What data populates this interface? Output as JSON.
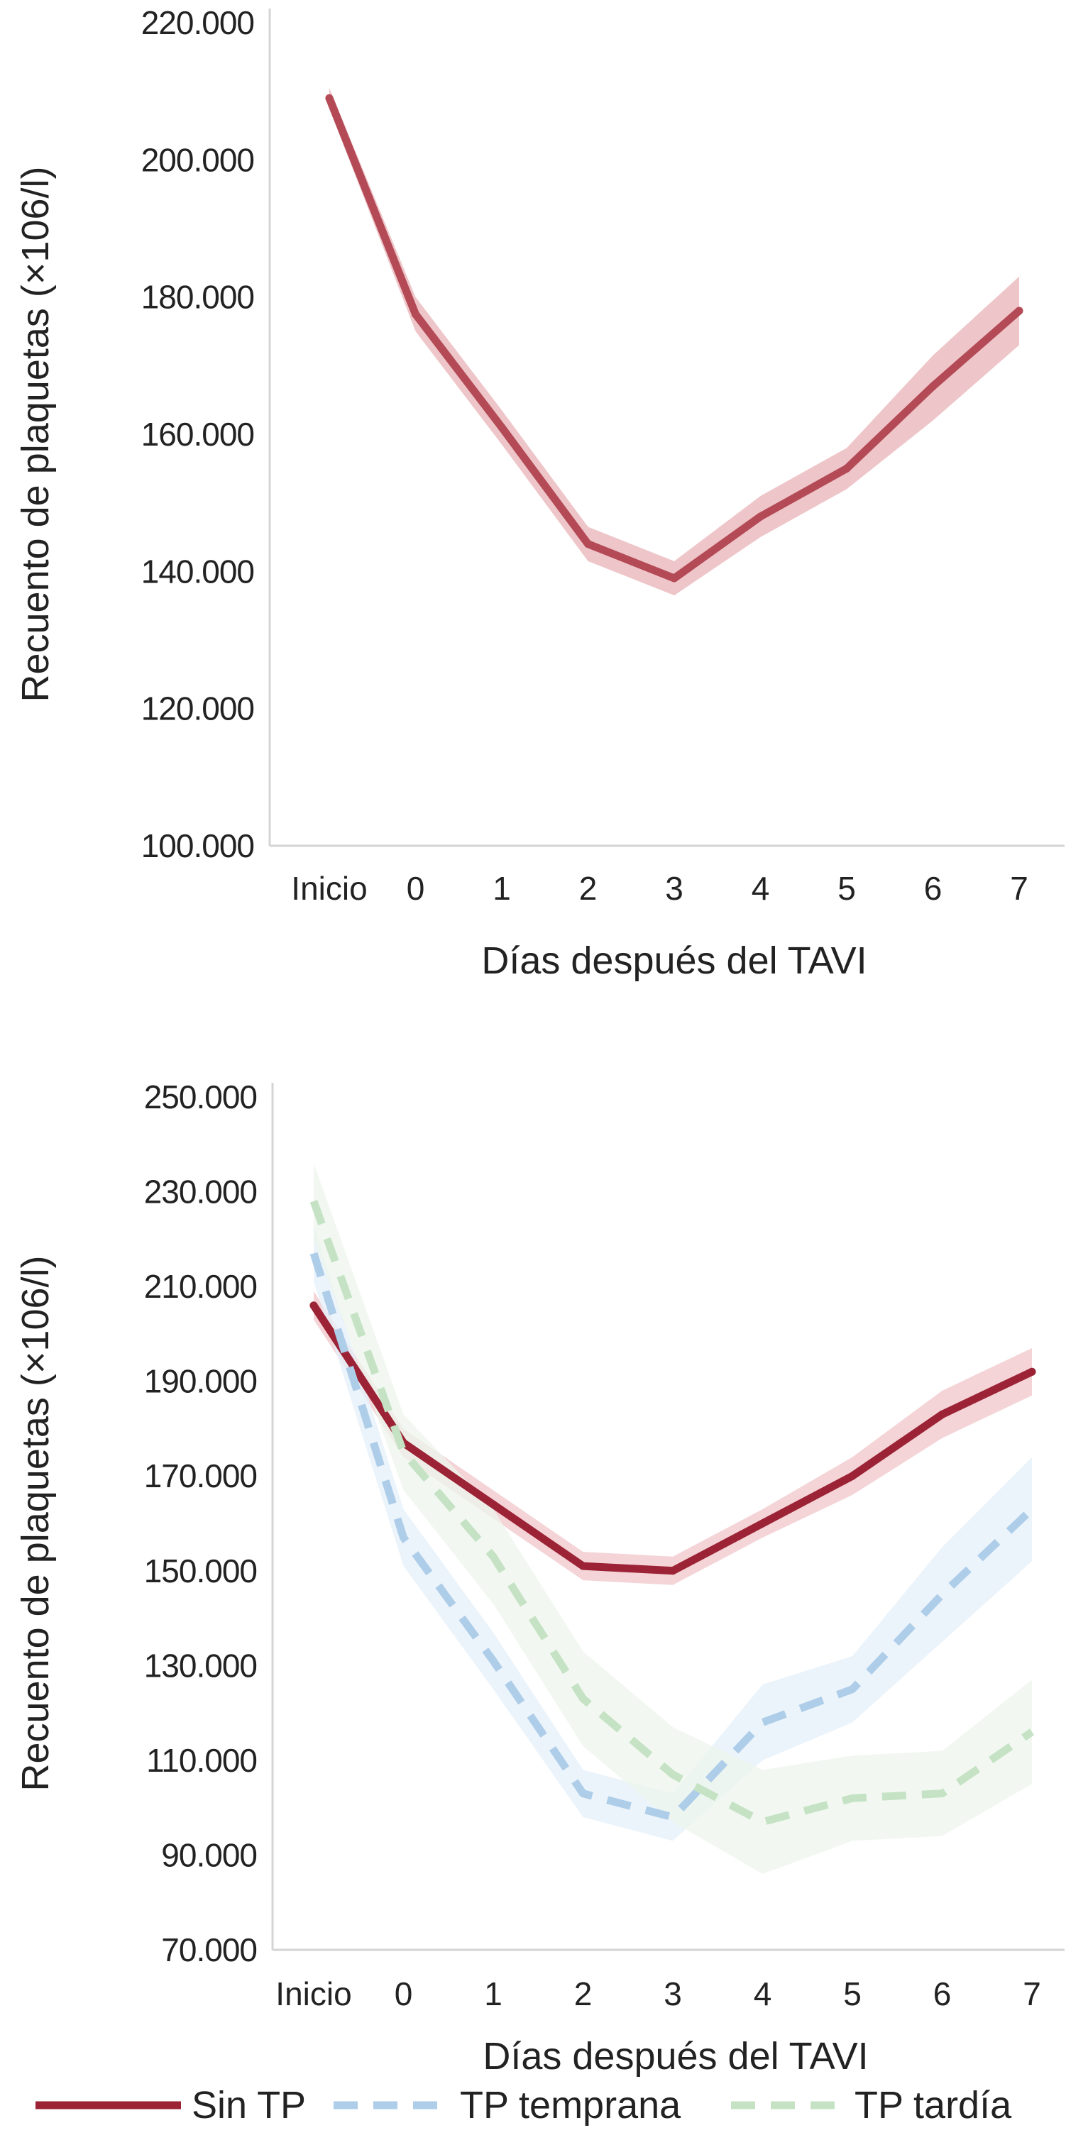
{
  "chart_data": [
    {
      "type": "line",
      "title": "",
      "xlabel": "Días después del TAVI",
      "ylabel": "Recuento de plaquetas (×106/l)",
      "categories": [
        "Inicio",
        "0",
        "1",
        "2",
        "3",
        "4",
        "5",
        "6",
        "7"
      ],
      "ylim": [
        100000,
        220000
      ],
      "yticks": [
        100000,
        120000,
        140000,
        160000,
        180000,
        200000,
        220000
      ],
      "ytick_labels": [
        "100.000",
        "120.000",
        "140.000",
        "160.000",
        "180.000",
        "200.000",
        "220.000"
      ],
      "grid": false,
      "series": [
        {
          "values": [
            209000,
            177500,
            161000,
            144000,
            139000,
            148000,
            155000,
            167000,
            178000
          ],
          "lower": [
            207500,
            175000,
            158500,
            141500,
            136500,
            145000,
            152000,
            162000,
            173000
          ],
          "upper": [
            210500,
            180000,
            163500,
            146500,
            141500,
            151000,
            158000,
            171500,
            183000
          ],
          "color": "#b34a56",
          "band_color": "#e8b3b7",
          "dashed": false
        }
      ]
    },
    {
      "type": "line",
      "title": "",
      "xlabel": "Días después del TAVI",
      "ylabel": "Recuento de plaquetas (×106/l)",
      "categories": [
        "Inicio",
        "0",
        "1",
        "2",
        "3",
        "4",
        "5",
        "6",
        "7"
      ],
      "ylim": [
        70000,
        250000
      ],
      "yticks": [
        70000,
        90000,
        110000,
        130000,
        150000,
        170000,
        190000,
        210000,
        230000,
        250000
      ],
      "ytick_labels": [
        "70.000",
        "90.000",
        "110.000",
        "130.000",
        "150.000",
        "170.000",
        "190.000",
        "210.000",
        "230.000",
        "250.000"
      ],
      "grid": false,
      "legend_position": "bottom",
      "series": [
        {
          "name": "Sin TP",
          "values": [
            206000,
            177000,
            164000,
            151000,
            150000,
            160000,
            170000,
            183000,
            192000
          ],
          "lower": [
            203000,
            174000,
            161000,
            148000,
            147000,
            157000,
            166000,
            178000,
            187000
          ],
          "upper": [
            209000,
            180000,
            167000,
            154000,
            153000,
            163000,
            174000,
            188000,
            197000
          ],
          "color": "#9b2335",
          "band_color": "#f0c6c9",
          "dashed": false
        },
        {
          "name": "TP temprana",
          "values": [
            217000,
            157000,
            131000,
            103000,
            98000,
            118000,
            125000,
            145000,
            163000
          ],
          "lower": [
            211000,
            151000,
            125000,
            98000,
            93000,
            110000,
            118000,
            135000,
            152000
          ],
          "upper": [
            223000,
            163000,
            137000,
            108000,
            103000,
            126000,
            132000,
            155000,
            174000
          ],
          "color": "#aecde9",
          "band_color": "#e6f0fa",
          "dashed": true
        },
        {
          "name": "TP tardía",
          "values": [
            228000,
            175000,
            153000,
            123000,
            107000,
            97000,
            102000,
            103000,
            116000
          ],
          "lower": [
            220000,
            167000,
            143000,
            113000,
            97000,
            86000,
            93000,
            94000,
            105000
          ],
          "upper": [
            236000,
            183000,
            163000,
            133000,
            117000,
            108000,
            111000,
            112000,
            127000
          ],
          "color": "#c5e3c4",
          "band_color": "#edf6ec",
          "dashed": true
        }
      ]
    }
  ]
}
